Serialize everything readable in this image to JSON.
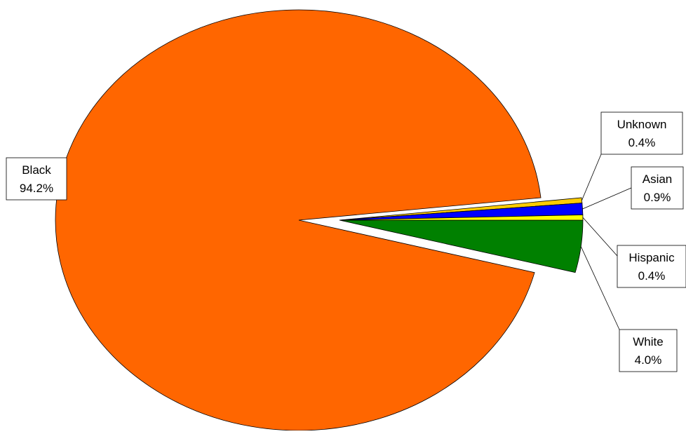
{
  "chart_data": {
    "type": "pie",
    "title": "",
    "legend": "none",
    "start_angle_deg": 0,
    "direction": "clockwise",
    "slices": [
      {
        "label": "White",
        "value": 4.0,
        "value_label": "4.0%",
        "color": "#008000",
        "exploded": true
      },
      {
        "label": "Black",
        "value": 94.2,
        "value_label": "94.2%",
        "color": "#FF6600",
        "exploded": false
      },
      {
        "label": "Unknown",
        "value": 0.4,
        "value_label": "0.4%",
        "color": "#FFCC00",
        "exploded": true
      },
      {
        "label": "Asian",
        "value": 0.9,
        "value_label": "0.9%",
        "color": "#0000FF",
        "exploded": true
      },
      {
        "label": "Hispanic",
        "value": 0.4,
        "value_label": "0.4%",
        "color": "#FFFF00",
        "exploded": true
      }
    ]
  }
}
